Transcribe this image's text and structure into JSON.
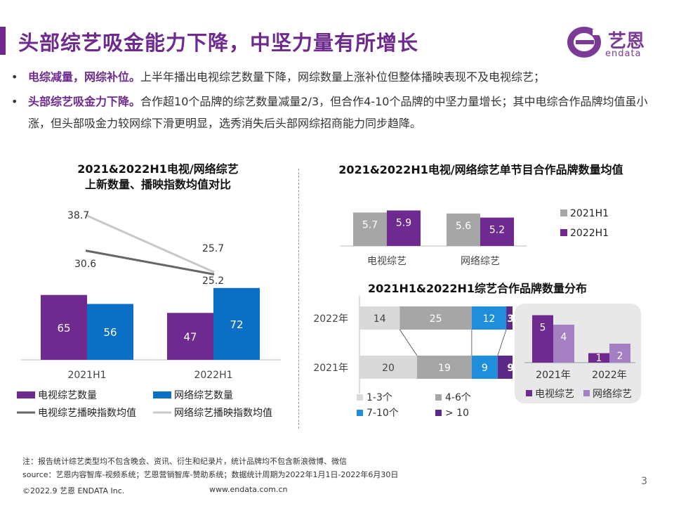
{
  "header": {
    "title": "头部综艺吸金能力下降，中坚力量有所增长",
    "logo_name": "艺恩",
    "logo_sub": "endata"
  },
  "bullets": [
    {
      "dot": "•",
      "bold": "电综减量，网综补位。",
      "text": "上半年播出电视综艺数量下降，网综数量上涨补位但整体播映表现不及电视综艺；"
    },
    {
      "dot": "•",
      "bold": "头部综艺吸金力下降。",
      "text": "合作超10个品牌的综艺数量减量2/3，但合作4-10个品牌的中坚力量增长；其中电综合作品牌均值虽小涨，但头部吸金力较网综下滑更明显，选秀消失后头部网综招商能力同步趋降。"
    }
  ],
  "colors": {
    "purple": "#6e2a8e",
    "blue": "#0b6fc6",
    "gray": "#a6a6a6",
    "light_purple": "#a57fc4",
    "line_dark": "#666666",
    "line_light": "#c8c8c8",
    "light_gray": "#d9d9d9",
    "mid_gray": "#a6a6a6",
    "sky": "#1f8fdb",
    "deep_purple": "#5c2a86"
  },
  "chart_data": [
    {
      "type": "bar",
      "title": "2021&2022H1电视/网络综艺上新数量、播映指数均值对比",
      "title_lines": [
        "2021&2022H1电视/网络综艺",
        "上新数量、播映指数均值对比"
      ],
      "categories": [
        "2021H1",
        "2022H1"
      ],
      "series": [
        {
          "name": "电视综艺数量",
          "values": [
            65,
            47
          ]
        },
        {
          "name": "网络综艺数量",
          "values": [
            56,
            72
          ]
        }
      ],
      "lines": [
        {
          "name": "电视综艺播映指数均值",
          "values": [
            30.6,
            25.2
          ]
        },
        {
          "name": "网络综艺播映指数均值",
          "values": [
            38.7,
            25.7
          ]
        }
      ]
    },
    {
      "type": "bar",
      "title": "2021&2022H1电视/网络综艺单节目合作品牌数量均值",
      "categories": [
        "电视综艺",
        "网络综艺"
      ],
      "series": [
        {
          "name": "2021H1",
          "values": [
            5.7,
            5.6
          ]
        },
        {
          "name": "2022H1",
          "values": [
            5.9,
            5.2
          ]
        }
      ]
    },
    {
      "type": "bar",
      "title": "2021H1&2022H1综艺合作品牌数量分布",
      "categories": [
        "2022年",
        "2021年"
      ],
      "series": [
        {
          "name": "1-3个",
          "values": [
            14,
            20
          ]
        },
        {
          "name": "4-6个",
          "values": [
            25,
            19
          ]
        },
        {
          "name": "7-10个",
          "values": [
            12,
            9
          ]
        },
        {
          "name": "> 10",
          "values": [
            3,
            9
          ]
        }
      ]
    },
    {
      "type": "bar",
      "categories": [
        "2021年",
        "2022年"
      ],
      "series": [
        {
          "name": "电视综艺",
          "values": [
            5,
            1
          ]
        },
        {
          "name": "网络综艺",
          "values": [
            4,
            2
          ]
        }
      ]
    }
  ],
  "footer": {
    "note": "注：报告统计综艺类型均不包含晚会、资讯、衍生和纪录片，统计品牌均不包含新浪微博、微信",
    "source": "source：艺恩内容智库-视频系统；艺恩营销智库-赞助系统；数据统计周期为2022年1月1日-2022年6月30日",
    "copyright": "©2022.9 艺恩 ENDATA Inc.",
    "url": "www.endata.com.cn",
    "page": "3"
  }
}
